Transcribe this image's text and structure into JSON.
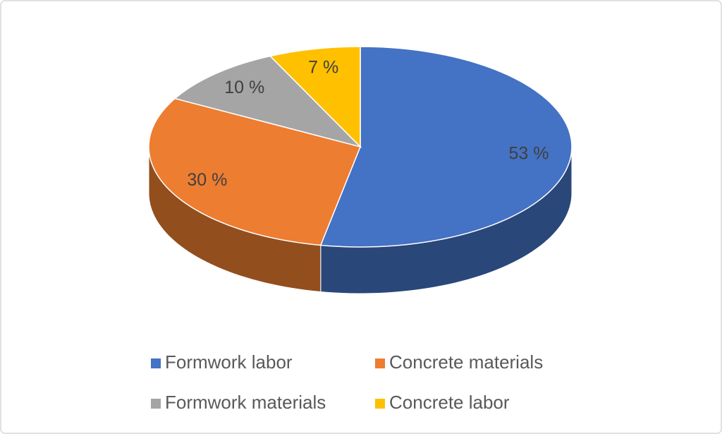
{
  "chart_data": {
    "type": "pie",
    "categories": [
      "Formwork labor",
      "Concrete materials",
      "Formwork materials",
      "Concrete labor"
    ],
    "values": [
      53,
      30,
      10,
      7
    ],
    "value_labels": [
      "53 %",
      "30 %",
      "10 %",
      "7 %"
    ],
    "colors": [
      "#4472c4",
      "#ed7d31",
      "#a5a5a5",
      "#ffc000"
    ],
    "legend": "bottom"
  }
}
